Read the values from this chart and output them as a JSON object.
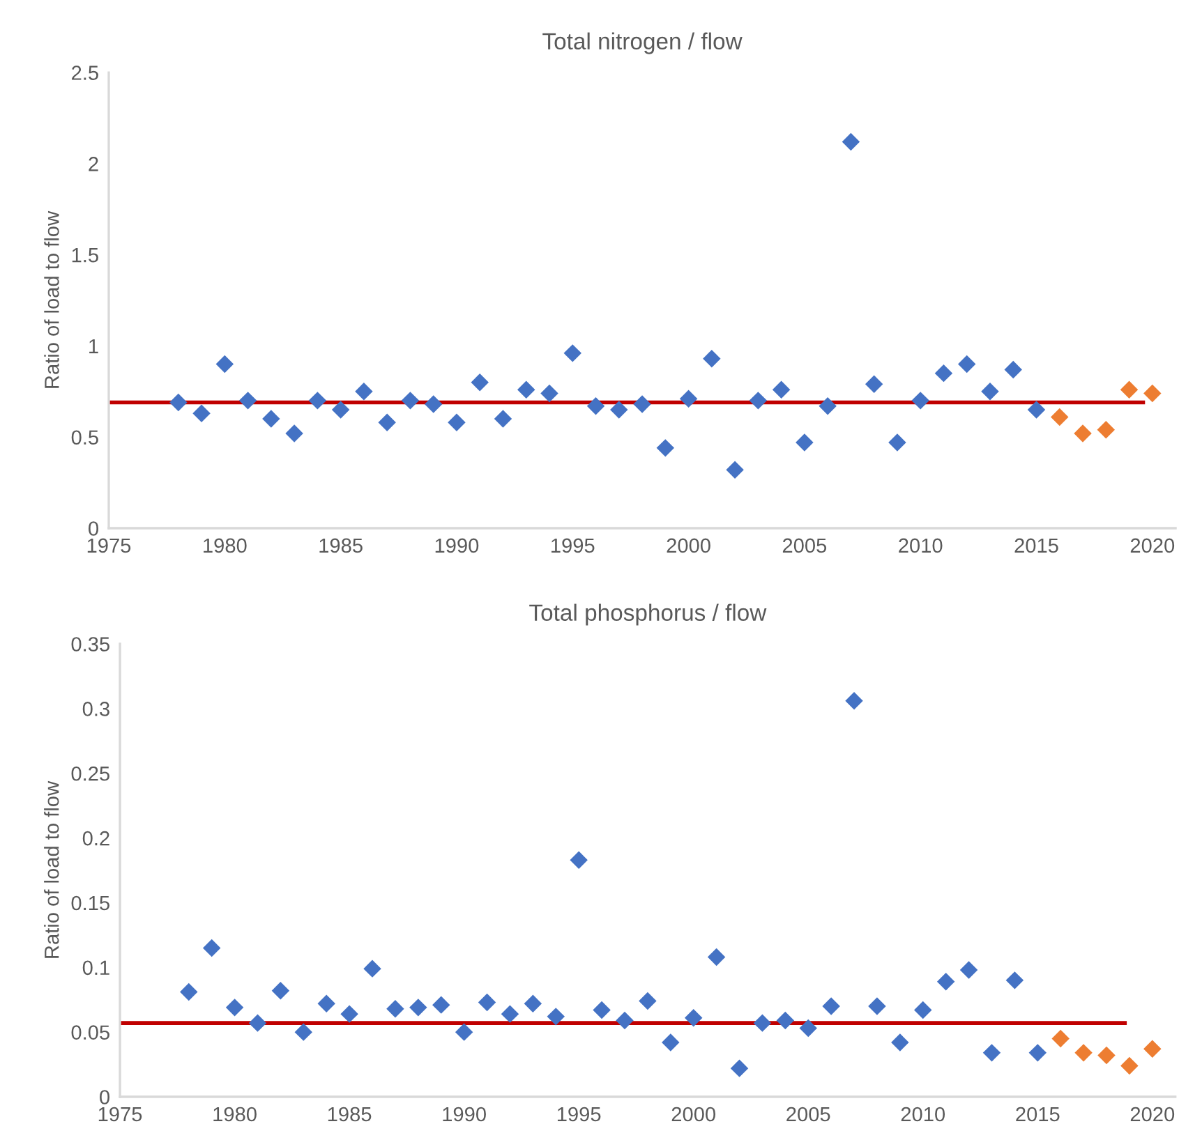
{
  "chart_data": [
    {
      "type": "scatter",
      "title": "Total nitrogen / flow",
      "ylabel": "Ratio of load to flow",
      "xlim": [
        1975,
        2021
      ],
      "xticks": [
        1975,
        1980,
        1985,
        1990,
        1995,
        2000,
        2005,
        2010,
        2015,
        2020
      ],
      "ylim": [
        0,
        2.5
      ],
      "yticks": [
        0,
        0.5,
        1,
        1.5,
        2,
        2.5
      ],
      "grid": false,
      "marker": "diamond",
      "series": [
        {
          "color": "#4472c4",
          "x": [
            1978,
            1979,
            1980,
            1981,
            1982,
            1983,
            1984,
            1985,
            1986,
            1987,
            1988,
            1989,
            1990,
            1991,
            1992,
            1993,
            1994,
            1995,
            1996,
            1997,
            1998,
            1999,
            2000,
            2001,
            2002,
            2003,
            2004,
            2005,
            2006,
            2007,
            2008,
            2009,
            2010,
            2011,
            2012,
            2013,
            2014,
            2015
          ],
          "values": [
            0.69,
            0.63,
            0.9,
            0.7,
            0.6,
            0.52,
            0.7,
            0.65,
            0.75,
            0.58,
            0.7,
            0.68,
            0.58,
            0.8,
            0.6,
            0.76,
            0.74,
            0.96,
            0.67,
            0.65,
            0.68,
            0.44,
            0.71,
            0.93,
            0.32,
            0.7,
            0.76,
            0.47,
            0.67,
            2.12,
            0.79,
            0.47,
            0.7,
            0.85,
            0.9,
            0.75,
            0.87,
            0.65
          ]
        },
        {
          "color": "#ed7d31",
          "x": [
            2016,
            2017,
            2018,
            2019,
            2020
          ],
          "values": [
            0.61,
            0.52,
            0.54,
            0.76,
            0.74
          ]
        },
        {
          "type": "line",
          "marker": "none",
          "color": "#c00000",
          "x": [
            1975,
            2019.6
          ],
          "values": [
            0.69,
            0.69
          ]
        }
      ]
    },
    {
      "type": "scatter",
      "title": "Total phosphorus / flow",
      "ylabel": "Ratio of load to flow",
      "xlim": [
        1975,
        2021
      ],
      "xticks": [
        1975,
        1980,
        1985,
        1990,
        1995,
        2000,
        2005,
        2010,
        2015,
        2020
      ],
      "ylim": [
        0,
        0.35
      ],
      "yticks": [
        0,
        0.05,
        0.1,
        0.15,
        0.2,
        0.25,
        0.3,
        0.35
      ],
      "grid": false,
      "marker": "diamond",
      "series": [
        {
          "color": "#4472c4",
          "x": [
            1978,
            1979,
            1980,
            1981,
            1982,
            1983,
            1984,
            1985,
            1986,
            1987,
            1988,
            1989,
            1990,
            1991,
            1992,
            1993,
            1994,
            1995,
            1996,
            1997,
            1998,
            1999,
            2000,
            2001,
            2002,
            2003,
            2004,
            2005,
            2006,
            2007,
            2008,
            2009,
            2010,
            2011,
            2012,
            2013,
            2014,
            2015
          ],
          "values": [
            0.081,
            0.115,
            0.069,
            0.057,
            0.082,
            0.05,
            0.072,
            0.064,
            0.099,
            0.068,
            0.069,
            0.071,
            0.05,
            0.073,
            0.064,
            0.072,
            0.062,
            0.183,
            0.067,
            0.059,
            0.074,
            0.042,
            0.061,
            0.108,
            0.022,
            0.057,
            0.059,
            0.053,
            0.07,
            0.306,
            0.07,
            0.042,
            0.067,
            0.089,
            0.098,
            0.034,
            0.09,
            0.034
          ]
        },
        {
          "color": "#ed7d31",
          "x": [
            2016,
            2017,
            2018,
            2019,
            2020
          ],
          "values": [
            0.045,
            0.034,
            0.032,
            0.024,
            0.037
          ]
        },
        {
          "type": "line",
          "marker": "none",
          "color": "#c00000",
          "x": [
            1975,
            2018.8
          ],
          "values": [
            0.057,
            0.057
          ]
        }
      ]
    }
  ]
}
